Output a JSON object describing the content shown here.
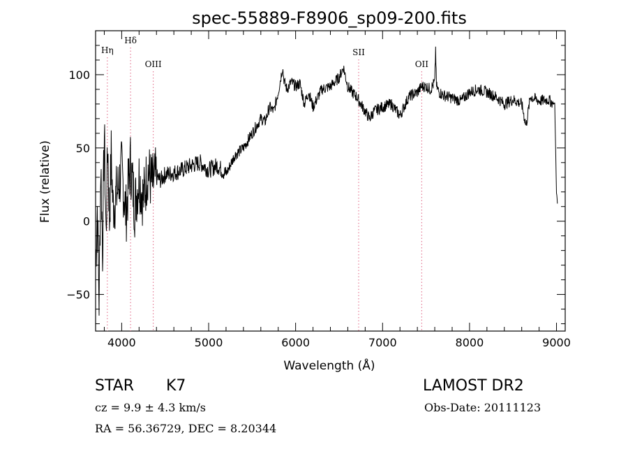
{
  "chart_data": {
    "type": "line",
    "title": "spec-55889-F8906_sp09-200.fits",
    "xlabel": "Wavelength (Å)",
    "ylabel": "Flux (relative)",
    "xlim": [
      3700,
      9100
    ],
    "ylim": [
      -75,
      130
    ],
    "x_ticks": [
      4000,
      5000,
      6000,
      7000,
      8000,
      9000
    ],
    "y_ticks": [
      -50,
      0,
      50,
      100
    ],
    "grid": false,
    "series": [
      {
        "x": [
          3700,
          3720,
          3740,
          3760,
          3780,
          3800,
          3820,
          3840,
          3860,
          3880,
          3900,
          3950,
          4000,
          4050,
          4100,
          4150,
          4200,
          4250,
          4300,
          4350,
          4400,
          4450,
          4500,
          4600,
          4700,
          4800,
          4900,
          5000,
          5100,
          5200,
          5300,
          5400,
          5500,
          5600,
          5650,
          5700,
          5750,
          5800,
          5850,
          5870,
          5900,
          5950,
          6000,
          6050,
          6100,
          6150,
          6200,
          6300,
          6400,
          6500,
          6550,
          6600,
          6650,
          6700,
          6750,
          6800,
          6850,
          6900,
          7000,
          7100,
          7200,
          7300,
          7400,
          7450,
          7500,
          7550,
          7600,
          7610,
          7620,
          7650,
          7700,
          7800,
          7900,
          8000,
          8100,
          8200,
          8300,
          8400,
          8500,
          8600,
          8650,
          8700,
          8800,
          8900,
          8980,
          9000,
          9010
        ],
        "y": [
          -30,
          10,
          -55,
          40,
          -20,
          60,
          -10,
          55,
          0,
          45,
          10,
          20,
          35,
          5,
          40,
          10,
          30,
          15,
          35,
          25,
          30,
          28,
          32,
          33,
          35,
          38,
          40,
          35,
          38,
          32,
          45,
          50,
          60,
          70,
          68,
          78,
          75,
          88,
          105,
          95,
          90,
          95,
          92,
          94,
          80,
          88,
          78,
          90,
          92,
          98,
          105,
          92,
          88,
          85,
          80,
          75,
          70,
          75,
          78,
          80,
          72,
          85,
          88,
          92,
          92,
          90,
          95,
          118,
          92,
          88,
          86,
          84,
          82,
          88,
          90,
          88,
          85,
          80,
          83,
          80,
          65,
          85,
          82,
          83,
          80,
          20,
          12
        ]
      }
    ],
    "annotations": [
      {
        "label": "Hη",
        "x": 3835
      },
      {
        "label": "Hδ",
        "x": 4102
      },
      {
        "label": "OIII",
        "x": 4363
      },
      {
        "label": "SII",
        "x": 6725
      },
      {
        "label": "OII",
        "x": 7450
      }
    ],
    "line_color": "#000000",
    "marker_color": "#e06080"
  },
  "footer": {
    "object": "STAR",
    "subclass": "K7",
    "survey": "LAMOST DR2",
    "cz": "cz = 9.9 ± 4.3 km/s",
    "obs_date": "Obs-Date: 20111123",
    "coords": "RA =  56.36729, DEC =   8.20344"
  }
}
